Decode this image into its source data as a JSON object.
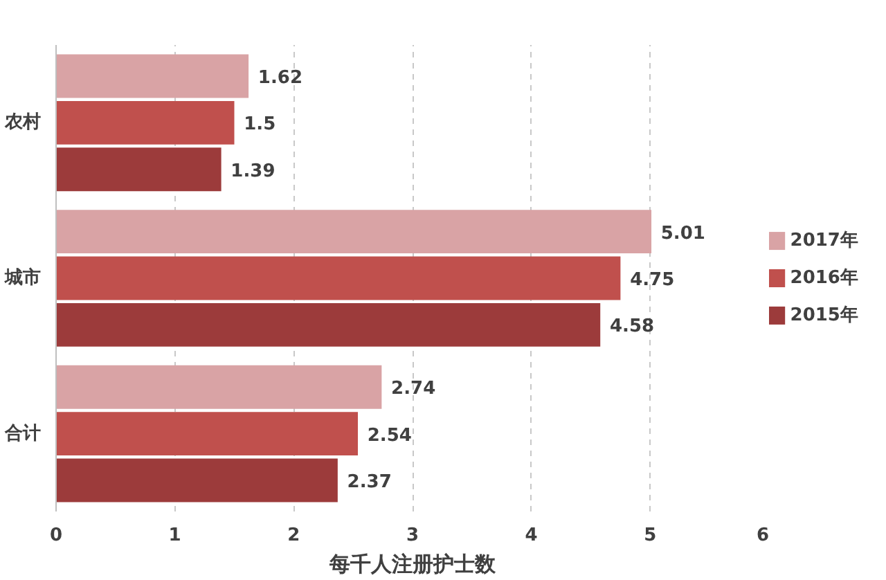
{
  "chart_data": {
    "type": "bar",
    "orientation": "horizontal",
    "xlabel": "每千人注册护士数",
    "categories": [
      "农村",
      "城市",
      "合计"
    ],
    "series": [
      {
        "name": "2017年",
        "color": "#d9a3a5",
        "values": [
          1.62,
          5.01,
          2.74
        ]
      },
      {
        "name": "2016年",
        "color": "#c0504d",
        "values": [
          1.5,
          4.75,
          2.54
        ]
      },
      {
        "name": "2015年",
        "color": "#9c3b3b",
        "values": [
          1.39,
          4.58,
          2.37
        ]
      }
    ],
    "xlim": [
      0,
      6
    ],
    "xticks": [
      0,
      1,
      2,
      3,
      4,
      5,
      6
    ],
    "grid": "x",
    "legend": "right",
    "data_labels": true
  }
}
